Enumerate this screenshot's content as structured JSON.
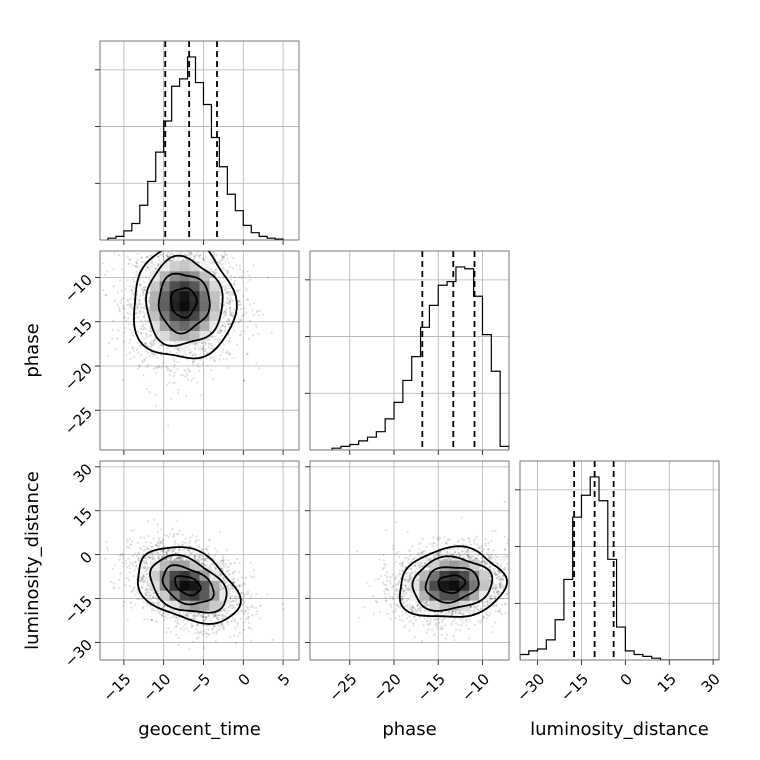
{
  "chart_data": {
    "type": "corner",
    "parameters": [
      "geocent_time",
      "phase",
      "luminosity_distance"
    ],
    "ranges": {
      "geocent_time": [
        -18,
        7
      ],
      "phase": [
        -29.5,
        -7
      ],
      "luminosity_distance": [
        -36,
        32
      ]
    },
    "ticks": {
      "geocent_time": [
        "-15",
        "-10",
        "-5",
        "0",
        "5"
      ],
      "phase": [
        "-25",
        "-20",
        "-15",
        "-10"
      ],
      "luminosity_distance": [
        "-30",
        "-15",
        "0",
        "15",
        "30"
      ]
    },
    "diagonal": {
      "geocent_time": {
        "quantiles": [
          -9.8,
          -6.8,
          -3.3
        ],
        "bin_edges": [
          -17,
          -16,
          -15,
          -14,
          -13,
          -12,
          -11,
          -10,
          -9,
          -8,
          -7,
          -6,
          -5,
          -4,
          -3,
          -2,
          -1,
          0,
          1,
          2,
          3,
          4,
          5
        ],
        "counts": [
          0.01,
          0.02,
          0.05,
          0.09,
          0.19,
          0.32,
          0.48,
          0.65,
          0.84,
          0.88,
          1.0,
          0.86,
          0.74,
          0.56,
          0.4,
          0.25,
          0.16,
          0.08,
          0.04,
          0.02,
          0.01,
          0.005
        ]
      },
      "phase": {
        "quantiles": [
          -16.8,
          -13.3,
          -10.9
        ],
        "bin_edges": [
          -27,
          -26,
          -25,
          -24,
          -23,
          -22,
          -21,
          -20,
          -19,
          -18,
          -17,
          -16,
          -15,
          -14,
          -13,
          -12,
          -11,
          -10,
          -9,
          -8,
          -7
        ],
        "counts": [
          0.01,
          0.02,
          0.03,
          0.05,
          0.07,
          0.1,
          0.17,
          0.26,
          0.38,
          0.51,
          0.67,
          0.79,
          0.9,
          0.92,
          1.0,
          0.99,
          0.84,
          0.63,
          0.43,
          0.02
        ]
      },
      "luminosity_distance": {
        "quantiles": [
          -17.5,
          -10.5,
          -4.0
        ],
        "bin_edges": [
          -36,
          -33,
          -30,
          -27,
          -24,
          -21,
          -18,
          -15,
          -12,
          -9,
          -6,
          -3,
          0,
          3,
          6,
          9,
          12,
          15,
          18,
          21,
          24,
          27,
          30,
          33
        ],
        "counts": [
          0.03,
          0.05,
          0.06,
          0.11,
          0.22,
          0.44,
          0.78,
          0.9,
          1.0,
          0.87,
          0.55,
          0.18,
          0.05,
          0.03,
          0.02,
          0.01,
          0.0,
          0.0,
          0.0,
          0.0,
          0.0,
          0.0,
          0.0
        ]
      }
    },
    "pairs": [
      {
        "x": "geocent_time",
        "y": "phase",
        "center": [
          -7.5,
          -12.8
        ],
        "sigma": [
          3.2,
          3.3
        ],
        "rho": 0.0
      },
      {
        "x": "geocent_time",
        "y": "luminosity_distance",
        "center": [
          -7.0,
          -10.5
        ],
        "sigma": [
          3.2,
          6.5
        ],
        "rho": -0.35
      },
      {
        "x": "phase",
        "y": "luminosity_distance",
        "center": [
          -13.5,
          -10.0
        ],
        "sigma": [
          3.0,
          6.0
        ],
        "rho": 0.1
      }
    ],
    "grid": true
  }
}
